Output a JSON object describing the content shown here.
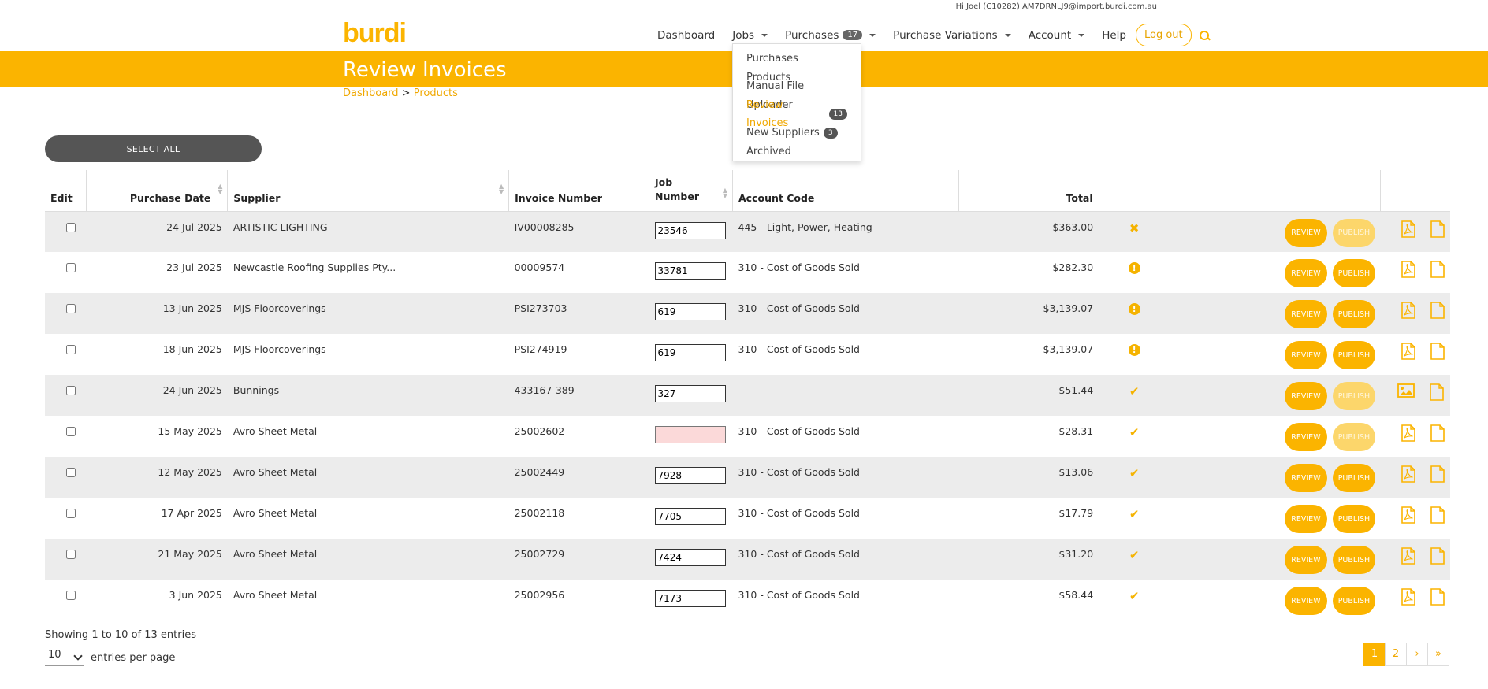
{
  "header": {
    "greeting": "Hi Joel (C10282) AM7DRNLJ9@import.burdi.com.au",
    "logo": "burdi",
    "nav": [
      {
        "label": "Dashboard",
        "caret": false
      },
      {
        "label": "Jobs",
        "caret": true
      },
      {
        "label": "Purchases",
        "badge": "17",
        "caret": true
      },
      {
        "label": "Purchase Variations",
        "caret": true
      },
      {
        "label": "Account",
        "caret": true
      },
      {
        "label": "Help",
        "caret": false
      }
    ],
    "logout": "Log out"
  },
  "dropdown": [
    {
      "label": "Purchases",
      "active": false
    },
    {
      "label": "Products",
      "active": false
    },
    {
      "label": "Manual File Uploader",
      "active": false
    },
    {
      "label": "Review Invoices",
      "badge": "13",
      "active": true
    },
    {
      "label": "New Suppliers",
      "badge": "3",
      "active": false
    },
    {
      "label": "Archived",
      "active": false
    }
  ],
  "page": {
    "title": "Review Invoices",
    "breadcrumb": {
      "home": "Dashboard",
      "sep": " > ",
      "current": "Products"
    }
  },
  "select_all": "SELECT ALL",
  "table": {
    "headers": {
      "edit": "Edit",
      "date": "Purchase Date",
      "supplier": "Supplier",
      "invoice": "Invoice Number",
      "job": "Job Number",
      "account": "Account Code",
      "total": "Total"
    },
    "review_label": "REVIEW",
    "publish_label": "PUBLISH",
    "rows": [
      {
        "date": "24 Jul 2025",
        "supplier": "ARTISTIC LIGHTING",
        "invoice": "IV00008285",
        "job": "23546",
        "account": "445 - Light, Power, Heating",
        "total": "$363.00",
        "status": "x",
        "publish_enabled": false,
        "file": "pdf"
      },
      {
        "date": "23 Jul 2025",
        "supplier": "Newcastle Roofing Supplies Pty...",
        "invoice": "00009574",
        "job": "33781",
        "account": "310 - Cost of Goods Sold",
        "total": "$282.30",
        "status": "alert",
        "publish_enabled": true,
        "file": "pdf"
      },
      {
        "date": "13 Jun 2025",
        "supplier": "MJS Floorcoverings",
        "invoice": "PSI273703",
        "job": "619",
        "account": "310 - Cost of Goods Sold",
        "total": "$3,139.07",
        "status": "alert",
        "publish_enabled": true,
        "file": "pdf"
      },
      {
        "date": "18 Jun 2025",
        "supplier": "MJS Floorcoverings",
        "invoice": "PSI274919",
        "job": "619",
        "account": "310 - Cost of Goods Sold",
        "total": "$3,139.07",
        "status": "alert",
        "publish_enabled": true,
        "file": "pdf"
      },
      {
        "date": "24 Jun 2025",
        "supplier": "Bunnings",
        "invoice": "433167-389",
        "job": "327",
        "account": "",
        "total": "$51.44",
        "status": "check",
        "publish_enabled": false,
        "file": "image"
      },
      {
        "date": "15 May 2025",
        "supplier": "Avro Sheet Metal",
        "invoice": "25002602",
        "job": "",
        "account": "310 - Cost of Goods Sold",
        "total": "$28.31",
        "status": "check",
        "publish_enabled": false,
        "file": "pdf",
        "job_error": true
      },
      {
        "date": "12 May 2025",
        "supplier": "Avro Sheet Metal",
        "invoice": "25002449",
        "job": "7928",
        "account": "310 - Cost of Goods Sold",
        "total": "$13.06",
        "status": "check",
        "publish_enabled": true,
        "file": "pdf"
      },
      {
        "date": "17 Apr 2025",
        "supplier": "Avro Sheet Metal",
        "invoice": "25002118",
        "job": "7705",
        "account": "310 - Cost of Goods Sold",
        "total": "$17.79",
        "status": "check",
        "publish_enabled": true,
        "file": "pdf"
      },
      {
        "date": "21 May 2025",
        "supplier": "Avro Sheet Metal",
        "invoice": "25002729",
        "job": "7424",
        "account": "310 - Cost of Goods Sold",
        "total": "$31.20",
        "status": "check",
        "publish_enabled": true,
        "file": "pdf"
      },
      {
        "date": "3 Jun 2025",
        "supplier": "Avro Sheet Metal",
        "invoice": "25002956",
        "job": "7173",
        "account": "310 - Cost of Goods Sold",
        "total": "$58.44",
        "status": "check",
        "publish_enabled": true,
        "file": "pdf"
      }
    ]
  },
  "footer": {
    "showing": "Showing 1 to 10 of 13 entries",
    "per_page_value": "10",
    "per_page_label": "entries per page",
    "pages": [
      "1",
      "2",
      "›",
      "»"
    ]
  },
  "colors": {
    "accent": "#fbb400",
    "badge": "#666666"
  }
}
